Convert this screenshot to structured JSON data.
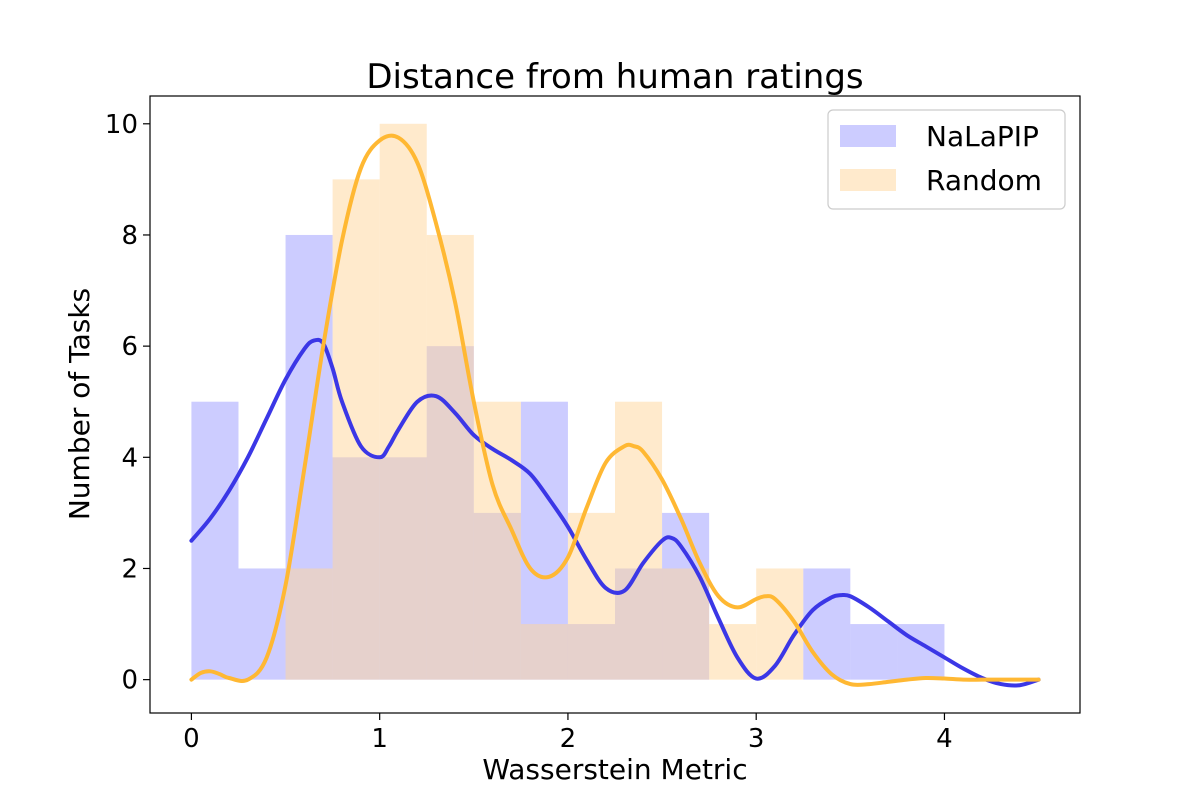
{
  "chart_data": {
    "type": "bar",
    "title": "Distance from human ratings",
    "xlabel": "Wasserstein Metric",
    "ylabel": "Number of Tasks",
    "xlim": [
      -0.22,
      4.72
    ],
    "ylim": [
      -0.6,
      10.5
    ],
    "xticks": [
      0,
      1,
      2,
      3,
      4
    ],
    "yticks": [
      0,
      2,
      4,
      6,
      8,
      10
    ],
    "bin_width": 0.25,
    "legend_position": "top-right",
    "series": [
      {
        "name": "NaLaPIP",
        "color": "#8080ff",
        "opacity": 0.4,
        "bin_starts": [
          0,
          0.25,
          0.5,
          0.75,
          1.0,
          1.25,
          1.5,
          1.75,
          2.0,
          2.25,
          2.5,
          2.75,
          3.0,
          3.25,
          3.5,
          3.75
        ],
        "counts": [
          5,
          2,
          8,
          4,
          4,
          6,
          3,
          5,
          1,
          2,
          3,
          0,
          0,
          2,
          1,
          1
        ],
        "kde_color": "#3b37e6",
        "kde": {
          "x": [
            0,
            0.1,
            0.2,
            0.3,
            0.4,
            0.5,
            0.6,
            0.65,
            0.7,
            0.75,
            0.8,
            0.9,
            1.0,
            1.05,
            1.1,
            1.2,
            1.3,
            1.4,
            1.5,
            1.6,
            1.7,
            1.8,
            1.9,
            2.0,
            2.1,
            2.2,
            2.3,
            2.4,
            2.5,
            2.55,
            2.6,
            2.7,
            2.8,
            2.9,
            3.0,
            3.1,
            3.2,
            3.3,
            3.4,
            3.45,
            3.5,
            3.6,
            3.7,
            3.8,
            3.9,
            4.0,
            4.1,
            4.2,
            4.3,
            4.4,
            4.5
          ],
          "y": [
            2.5,
            2.9,
            3.4,
            4.0,
            4.7,
            5.4,
            5.95,
            6.1,
            6.05,
            5.6,
            5.0,
            4.2,
            4.0,
            4.2,
            4.5,
            5.0,
            5.1,
            4.8,
            4.4,
            4.15,
            3.95,
            3.7,
            3.25,
            2.75,
            2.15,
            1.65,
            1.6,
            2.1,
            2.5,
            2.55,
            2.4,
            1.85,
            1.1,
            0.4,
            0.02,
            0.25,
            0.8,
            1.25,
            1.48,
            1.52,
            1.5,
            1.3,
            1.05,
            0.8,
            0.6,
            0.4,
            0.2,
            0.03,
            -0.08,
            -0.1,
            0.0
          ]
        }
      },
      {
        "name": "Random",
        "color": "#ffd699",
        "opacity": 0.5,
        "bin_starts": [
          0,
          0.25,
          0.5,
          0.75,
          1.0,
          1.25,
          1.5,
          1.75,
          2.0,
          2.25,
          2.5,
          2.75,
          3.0,
          3.25,
          3.5,
          3.75
        ],
        "counts": [
          0,
          0,
          2,
          9,
          10,
          8,
          5,
          1,
          3,
          5,
          2,
          1,
          2,
          0,
          0,
          0
        ],
        "kde_color": "#ffb833",
        "kde": {
          "x": [
            0,
            0.05,
            0.1,
            0.15,
            0.2,
            0.3,
            0.4,
            0.5,
            0.6,
            0.7,
            0.8,
            0.9,
            1.0,
            1.1,
            1.2,
            1.3,
            1.4,
            1.5,
            1.6,
            1.7,
            1.8,
            1.9,
            2.0,
            2.1,
            2.2,
            2.3,
            2.35,
            2.4,
            2.5,
            2.6,
            2.7,
            2.8,
            2.9,
            3.0,
            3.05,
            3.1,
            3.2,
            3.3,
            3.4,
            3.5,
            3.6,
            3.7,
            3.8,
            3.9,
            4.0,
            4.1,
            4.2,
            4.3,
            4.4,
            4.5
          ],
          "y": [
            0.0,
            0.12,
            0.15,
            0.1,
            0.03,
            0.0,
            0.4,
            1.7,
            3.8,
            6.0,
            7.9,
            9.2,
            9.7,
            9.75,
            9.3,
            8.2,
            6.8,
            5.0,
            3.5,
            2.7,
            2.0,
            1.85,
            2.2,
            3.1,
            3.9,
            4.2,
            4.2,
            4.1,
            3.6,
            2.9,
            2.1,
            1.5,
            1.3,
            1.45,
            1.5,
            1.45,
            1.05,
            0.5,
            0.1,
            -0.08,
            -0.08,
            -0.04,
            0.0,
            0.03,
            0.02,
            0.0,
            0.0,
            0.0,
            0.0,
            0.0
          ]
        }
      }
    ]
  }
}
